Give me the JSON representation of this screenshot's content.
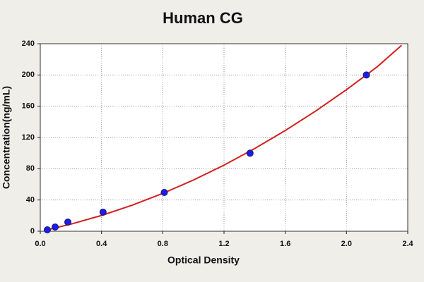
{
  "chart_data": {
    "type": "scatter",
    "title": "Human CG",
    "x_label": "Optical Density",
    "y_label": "Concentration(ng/mL)",
    "xlim": [
      0,
      2.4
    ],
    "xticks": [
      {
        "value": 0,
        "label": "0.0"
      },
      0.4,
      0.8,
      1.2,
      1.6,
      {
        "value": 2,
        "label": "2.0"
      },
      2.4
    ],
    "ylim": [
      0,
      240
    ],
    "yticks": [
      0,
      40,
      80,
      120,
      160,
      200,
      240
    ],
    "grid": true,
    "series": [
      {
        "mode": "markers",
        "color": "#1c1cf0",
        "x": [
          0.046,
          0.097,
          0.18,
          0.41,
          0.81,
          1.37,
          2.13
        ],
        "values": [
          1.8,
          5.4,
          11.7,
          24.4,
          49.6,
          99.9,
          200
        ]
      },
      {
        "mode": "line",
        "color": "#d42020",
        "x": [
          0.04,
          0.2,
          0.4,
          0.6,
          0.8,
          1.0,
          1.2,
          1.4,
          1.6,
          1.8,
          2.0,
          2.2,
          2.36
        ],
        "values": [
          1.6,
          9.1,
          20.2,
          33.3,
          48.4,
          65.5,
          84.6,
          105.8,
          128.9,
          154.0,
          181.2,
          210.4,
          238
        ]
      }
    ]
  }
}
